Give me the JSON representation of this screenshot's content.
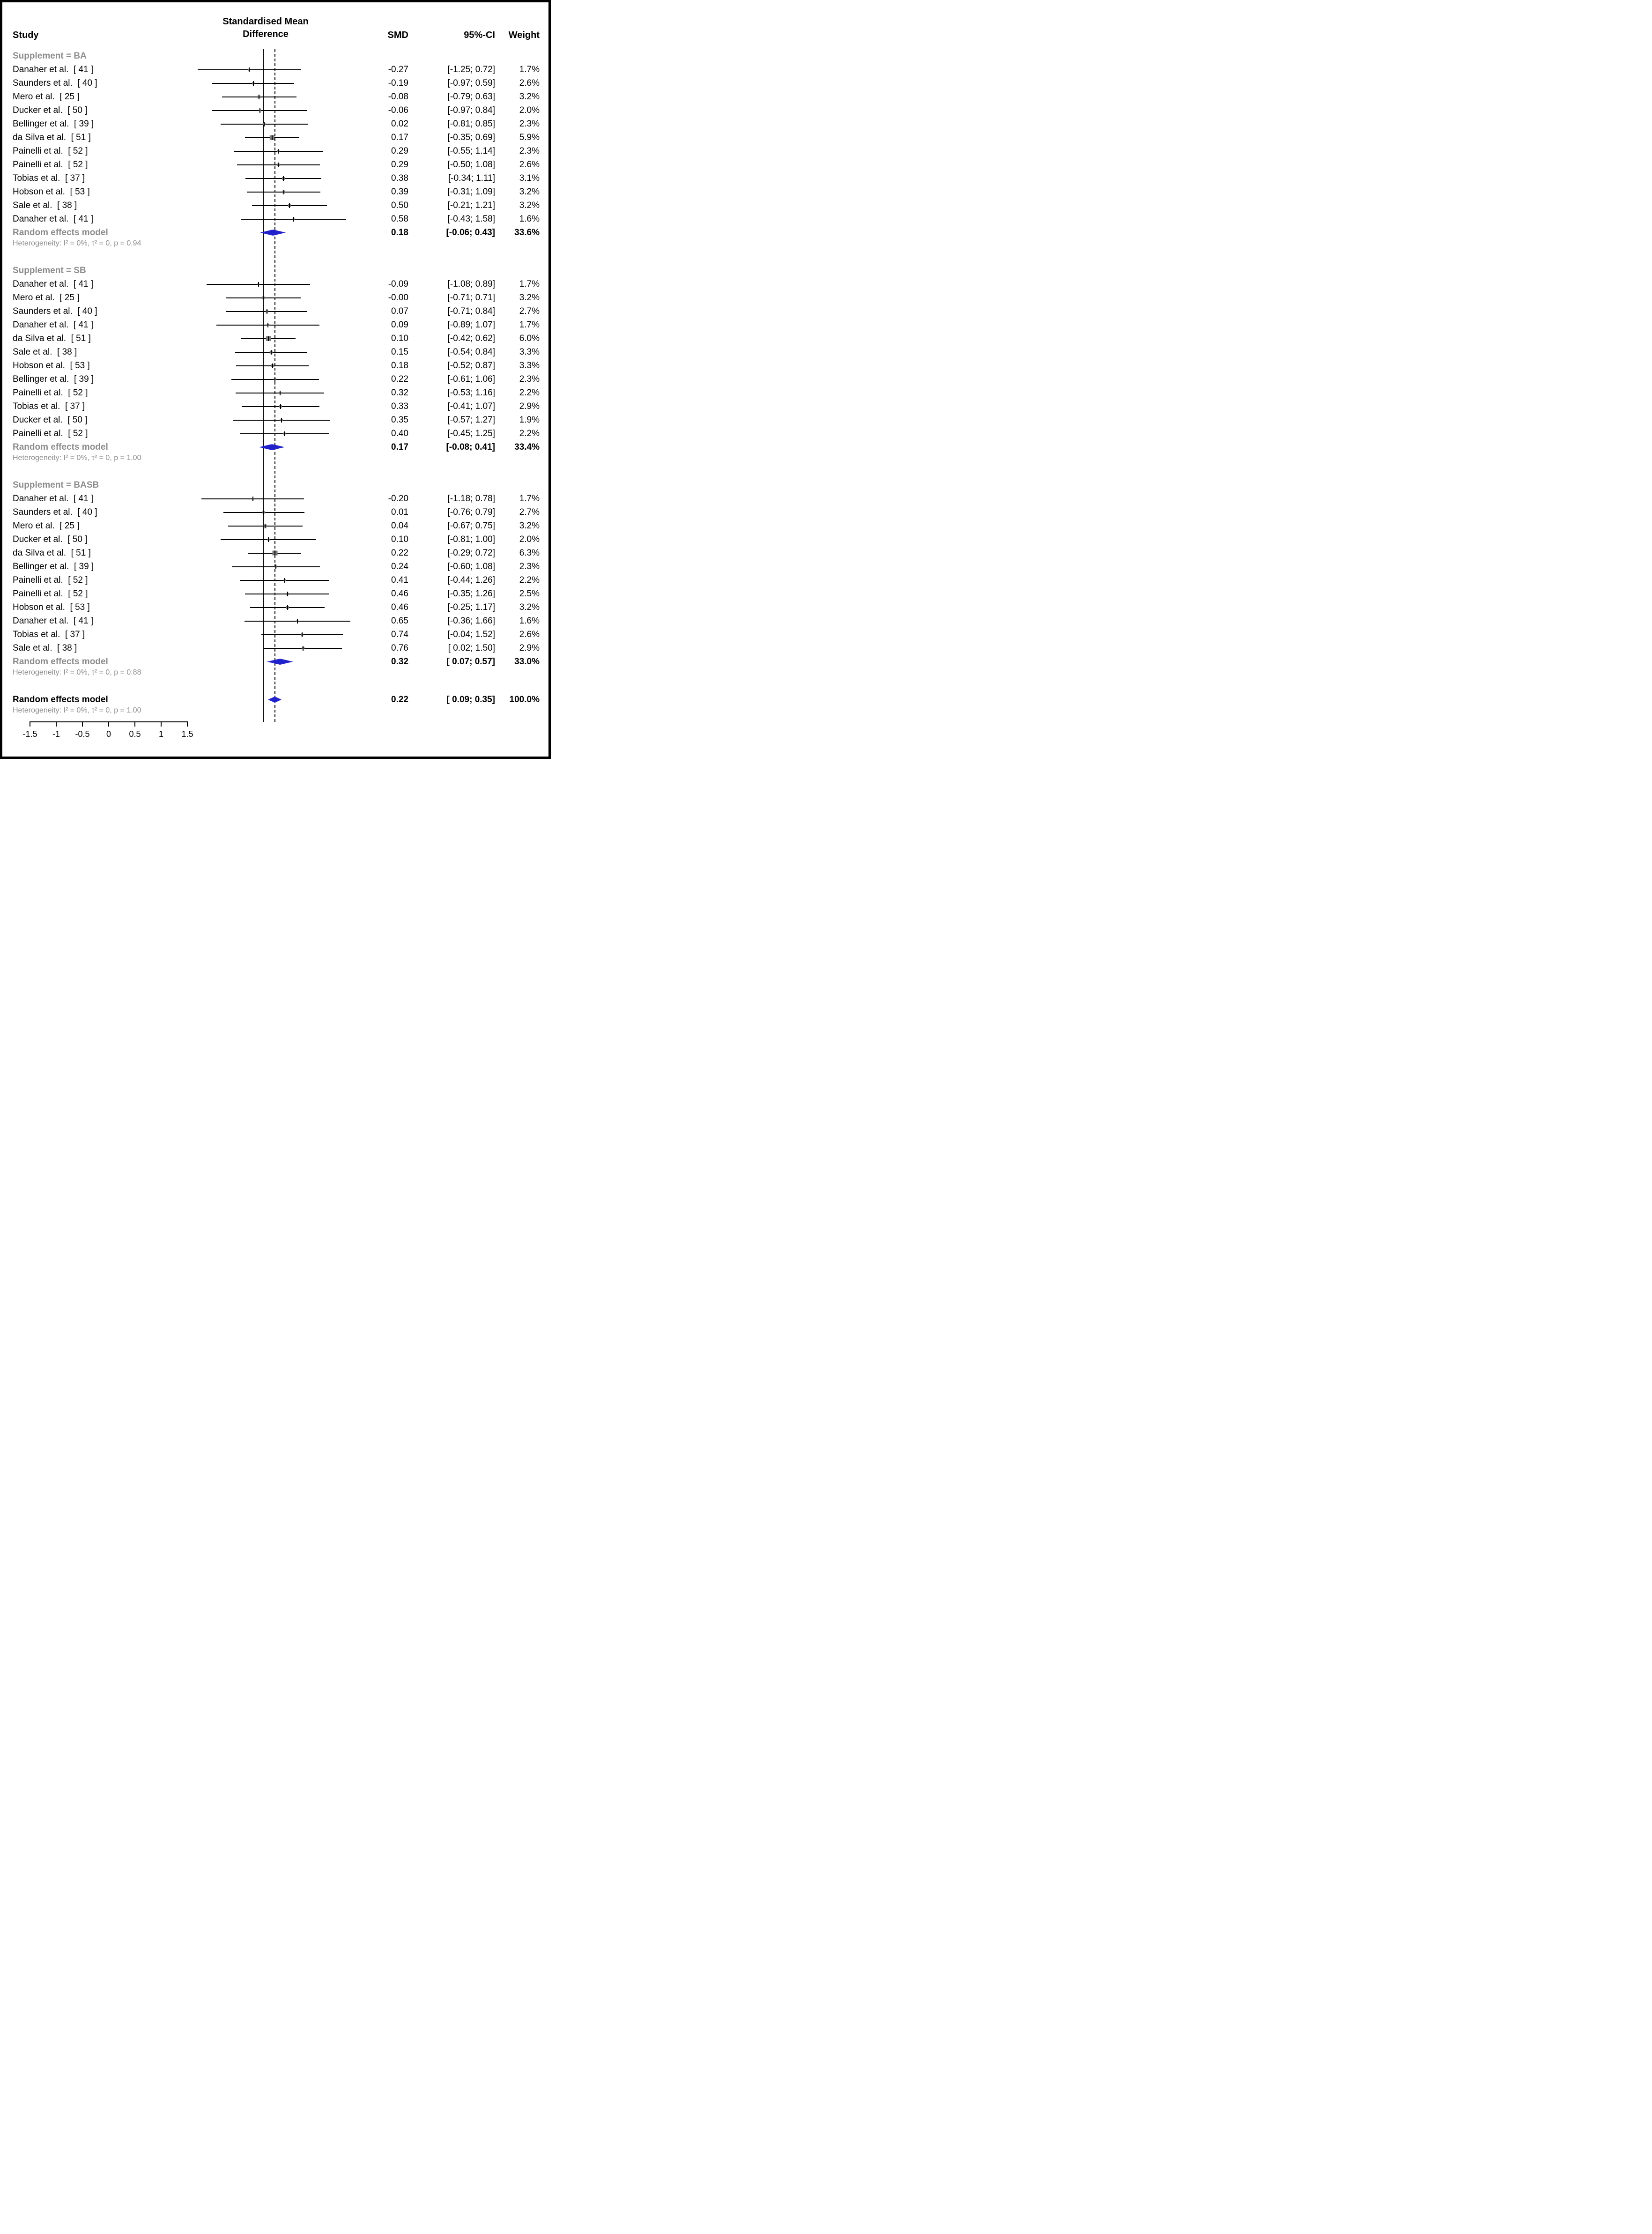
{
  "header": {
    "study": "Study",
    "effect_label_line1": "Standardised Mean",
    "effect_label_line2": "Difference",
    "smd": "SMD",
    "ci": "95%-CI",
    "weight": "Weight"
  },
  "colors": {
    "background": "#FFFFFF",
    "border": "#000000",
    "line": "#000000",
    "diamond_fill": "#2222CC",
    "marker_fill": "#7A7A7A",
    "group_text": "#8C8C8C"
  },
  "chart_data": {
    "type": "forest",
    "effect_measure": "Standardised Mean Difference",
    "x_tick_labels": [
      "-1.5",
      "-1",
      "-0.5",
      "0",
      "0.5",
      "1",
      "1.5"
    ],
    "x_tick_values": [
      -1.5,
      -1,
      -0.5,
      0,
      0.5,
      1,
      1.5
    ],
    "xlim": [
      -1.5,
      1.5
    ],
    "reference_line": 0,
    "overall_estimate_line": 0.22,
    "groups": [
      {
        "label": "Supplement = BA",
        "studies": [
          {
            "name": "Danaher et al.  [ 41 ]",
            "smd": -0.27,
            "lo": -1.25,
            "hi": 0.72,
            "weight": 1.7,
            "smd_text": "-0.27",
            "ci_text": "[-1.25; 0.72]",
            "weight_text": "1.7%"
          },
          {
            "name": "Saunders et al.  [ 40 ]",
            "smd": -0.19,
            "lo": -0.97,
            "hi": 0.59,
            "weight": 2.6,
            "smd_text": "-0.19",
            "ci_text": "[-0.97; 0.59]",
            "weight_text": "2.6%"
          },
          {
            "name": "Mero et al.  [ 25 ]",
            "smd": -0.08,
            "lo": -0.79,
            "hi": 0.63,
            "weight": 3.2,
            "smd_text": "-0.08",
            "ci_text": "[-0.79; 0.63]",
            "weight_text": "3.2%"
          },
          {
            "name": "Ducker et al.  [ 50 ]",
            "smd": -0.06,
            "lo": -0.97,
            "hi": 0.84,
            "weight": 2.0,
            "smd_text": "-0.06",
            "ci_text": "[-0.97; 0.84]",
            "weight_text": "2.0%"
          },
          {
            "name": "Bellinger et al.  [ 39 ]",
            "smd": 0.02,
            "lo": -0.81,
            "hi": 0.85,
            "weight": 2.3,
            "smd_text": "0.02",
            "ci_text": "[-0.81; 0.85]",
            "weight_text": "2.3%"
          },
          {
            "name": "da Silva et al.  [ 51 ]",
            "smd": 0.17,
            "lo": -0.35,
            "hi": 0.69,
            "weight": 5.9,
            "smd_text": "0.17",
            "ci_text": "[-0.35; 0.69]",
            "weight_text": "5.9%"
          },
          {
            "name": "Painelli et al.  [ 52 ]",
            "smd": 0.29,
            "lo": -0.55,
            "hi": 1.14,
            "weight": 2.3,
            "smd_text": "0.29",
            "ci_text": "[-0.55; 1.14]",
            "weight_text": "2.3%"
          },
          {
            "name": "Painelli et al.  [ 52 ]",
            "smd": 0.29,
            "lo": -0.5,
            "hi": 1.08,
            "weight": 2.6,
            "smd_text": "0.29",
            "ci_text": "[-0.50; 1.08]",
            "weight_text": "2.6%"
          },
          {
            "name": "Tobias et al.  [ 37 ]",
            "smd": 0.38,
            "lo": -0.34,
            "hi": 1.11,
            "weight": 3.1,
            "smd_text": "0.38",
            "ci_text": "[-0.34; 1.11]",
            "weight_text": "3.1%"
          },
          {
            "name": "Hobson et al.  [ 53 ]",
            "smd": 0.39,
            "lo": -0.31,
            "hi": 1.09,
            "weight": 3.2,
            "smd_text": "0.39",
            "ci_text": "[-0.31; 1.09]",
            "weight_text": "3.2%"
          },
          {
            "name": "Sale et al.  [ 38 ]",
            "smd": 0.5,
            "lo": -0.21,
            "hi": 1.21,
            "weight": 3.2,
            "smd_text": "0.50",
            "ci_text": "[-0.21; 1.21]",
            "weight_text": "3.2%"
          },
          {
            "name": "Danaher et al.  [ 41 ]",
            "smd": 0.58,
            "lo": -0.43,
            "hi": 1.58,
            "weight": 1.6,
            "smd_text": "0.58",
            "ci_text": "[-0.43; 1.58]",
            "weight_text": "1.6%"
          }
        ],
        "summary": {
          "label": "Random effects model",
          "smd": 0.18,
          "lo": -0.06,
          "hi": 0.43,
          "smd_text": "0.18",
          "ci_text": "[-0.06; 0.43]",
          "weight_text": "33.6%"
        },
        "heterogeneity": "Heterogeneity: I² = 0%, τ² = 0, p = 0.94"
      },
      {
        "label": "Supplement = SB",
        "studies": [
          {
            "name": "Danaher et al.  [ 41 ]",
            "smd": -0.09,
            "lo": -1.08,
            "hi": 0.89,
            "weight": 1.7,
            "smd_text": "-0.09",
            "ci_text": "[-1.08; 0.89]",
            "weight_text": "1.7%"
          },
          {
            "name": "Mero et al.  [ 25 ]",
            "smd": -0.0,
            "lo": -0.71,
            "hi": 0.71,
            "weight": 3.2,
            "smd_text": "-0.00",
            "ci_text": "[-0.71; 0.71]",
            "weight_text": "3.2%"
          },
          {
            "name": "Saunders et al.  [ 40 ]",
            "smd": 0.07,
            "lo": -0.71,
            "hi": 0.84,
            "weight": 2.7,
            "smd_text": "0.07",
            "ci_text": "[-0.71; 0.84]",
            "weight_text": "2.7%"
          },
          {
            "name": "Danaher et al.  [ 41 ]",
            "smd": 0.09,
            "lo": -0.89,
            "hi": 1.07,
            "weight": 1.7,
            "smd_text": "0.09",
            "ci_text": "[-0.89; 1.07]",
            "weight_text": "1.7%"
          },
          {
            "name": "da Silva et al.  [ 51 ]",
            "smd": 0.1,
            "lo": -0.42,
            "hi": 0.62,
            "weight": 6.0,
            "smd_text": "0.10",
            "ci_text": "[-0.42; 0.62]",
            "weight_text": "6.0%"
          },
          {
            "name": "Sale et al.  [ 38 ]",
            "smd": 0.15,
            "lo": -0.54,
            "hi": 0.84,
            "weight": 3.3,
            "smd_text": "0.15",
            "ci_text": "[-0.54; 0.84]",
            "weight_text": "3.3%"
          },
          {
            "name": "Hobson et al.  [ 53 ]",
            "smd": 0.18,
            "lo": -0.52,
            "hi": 0.87,
            "weight": 3.3,
            "smd_text": "0.18",
            "ci_text": "[-0.52; 0.87]",
            "weight_text": "3.3%"
          },
          {
            "name": "Bellinger et al.  [ 39 ]",
            "smd": 0.22,
            "lo": -0.61,
            "hi": 1.06,
            "weight": 2.3,
            "smd_text": "0.22",
            "ci_text": "[-0.61; 1.06]",
            "weight_text": "2.3%"
          },
          {
            "name": "Painelli et al.  [ 52 ]",
            "smd": 0.32,
            "lo": -0.53,
            "hi": 1.16,
            "weight": 2.2,
            "smd_text": "0.32",
            "ci_text": "[-0.53; 1.16]",
            "weight_text": "2.2%"
          },
          {
            "name": "Tobias et al.  [ 37 ]",
            "smd": 0.33,
            "lo": -0.41,
            "hi": 1.07,
            "weight": 2.9,
            "smd_text": "0.33",
            "ci_text": "[-0.41; 1.07]",
            "weight_text": "2.9%"
          },
          {
            "name": "Ducker et al.  [ 50 ]",
            "smd": 0.35,
            "lo": -0.57,
            "hi": 1.27,
            "weight": 1.9,
            "smd_text": "0.35",
            "ci_text": "[-0.57; 1.27]",
            "weight_text": "1.9%"
          },
          {
            "name": "Painelli et al.  [ 52 ]",
            "smd": 0.4,
            "lo": -0.45,
            "hi": 1.25,
            "weight": 2.2,
            "smd_text": "0.40",
            "ci_text": "[-0.45; 1.25]",
            "weight_text": "2.2%"
          }
        ],
        "summary": {
          "label": "Random effects model",
          "smd": 0.17,
          "lo": -0.08,
          "hi": 0.41,
          "smd_text": "0.17",
          "ci_text": "[-0.08; 0.41]",
          "weight_text": "33.4%"
        },
        "heterogeneity": "Heterogeneity: I² = 0%, τ² = 0, p = 1.00"
      },
      {
        "label": "Supplement = BASB",
        "studies": [
          {
            "name": "Danaher et al.  [ 41 ]",
            "smd": -0.2,
            "lo": -1.18,
            "hi": 0.78,
            "weight": 1.7,
            "smd_text": "-0.20",
            "ci_text": "[-1.18; 0.78]",
            "weight_text": "1.7%"
          },
          {
            "name": "Saunders et al.  [ 40 ]",
            "smd": 0.01,
            "lo": -0.76,
            "hi": 0.79,
            "weight": 2.7,
            "smd_text": "0.01",
            "ci_text": "[-0.76; 0.79]",
            "weight_text": "2.7%"
          },
          {
            "name": "Mero et al.  [ 25 ]",
            "smd": 0.04,
            "lo": -0.67,
            "hi": 0.75,
            "weight": 3.2,
            "smd_text": "0.04",
            "ci_text": "[-0.67; 0.75]",
            "weight_text": "3.2%"
          },
          {
            "name": "Ducker et al.  [ 50 ]",
            "smd": 0.1,
            "lo": -0.81,
            "hi": 1.0,
            "weight": 2.0,
            "smd_text": "0.10",
            "ci_text": "[-0.81; 1.00]",
            "weight_text": "2.0%"
          },
          {
            "name": "da Silva et al.  [ 51 ]",
            "smd": 0.22,
            "lo": -0.29,
            "hi": 0.72,
            "weight": 6.3,
            "smd_text": "0.22",
            "ci_text": "[-0.29; 0.72]",
            "weight_text": "6.3%"
          },
          {
            "name": "Bellinger et al.  [ 39 ]",
            "smd": 0.24,
            "lo": -0.6,
            "hi": 1.08,
            "weight": 2.3,
            "smd_text": "0.24",
            "ci_text": "[-0.60; 1.08]",
            "weight_text": "2.3%"
          },
          {
            "name": "Painelli et al.  [ 52 ]",
            "smd": 0.41,
            "lo": -0.44,
            "hi": 1.26,
            "weight": 2.2,
            "smd_text": "0.41",
            "ci_text": "[-0.44; 1.26]",
            "weight_text": "2.2%"
          },
          {
            "name": "Painelli et al.  [ 52 ]",
            "smd": 0.46,
            "lo": -0.35,
            "hi": 1.26,
            "weight": 2.5,
            "smd_text": "0.46",
            "ci_text": "[-0.35; 1.26]",
            "weight_text": "2.5%"
          },
          {
            "name": "Hobson et al.  [ 53 ]",
            "smd": 0.46,
            "lo": -0.25,
            "hi": 1.17,
            "weight": 3.2,
            "smd_text": "0.46",
            "ci_text": "[-0.25; 1.17]",
            "weight_text": "3.2%"
          },
          {
            "name": "Danaher et al.  [ 41 ]",
            "smd": 0.65,
            "lo": -0.36,
            "hi": 1.66,
            "weight": 1.6,
            "smd_text": "0.65",
            "ci_text": "[-0.36; 1.66]",
            "weight_text": "1.6%"
          },
          {
            "name": "Tobias et al.  [ 37 ]",
            "smd": 0.74,
            "lo": -0.04,
            "hi": 1.52,
            "weight": 2.6,
            "smd_text": "0.74",
            "ci_text": "[-0.04; 1.52]",
            "weight_text": "2.6%"
          },
          {
            "name": "Sale et al.  [ 38 ]",
            "smd": 0.76,
            "lo": 0.02,
            "hi": 1.5,
            "weight": 2.9,
            "smd_text": "0.76",
            "ci_text": "[ 0.02; 1.50]",
            "weight_text": "2.9%"
          }
        ],
        "summary": {
          "label": "Random effects model",
          "smd": 0.32,
          "lo": 0.07,
          "hi": 0.57,
          "smd_text": "0.32",
          "ci_text": "[ 0.07; 0.57]",
          "weight_text": "33.0%"
        },
        "heterogeneity": "Heterogeneity: I² = 0%, τ² = 0, p = 0.88"
      }
    ],
    "overall": {
      "label": "Random effects model",
      "smd": 0.22,
      "lo": 0.09,
      "hi": 0.35,
      "smd_text": "0.22",
      "ci_text": "[ 0.09; 0.35]",
      "weight_text": "100.0%",
      "heterogeneity": "Heterogeneity: I² = 0%, τ² = 0, p = 1.00"
    }
  }
}
